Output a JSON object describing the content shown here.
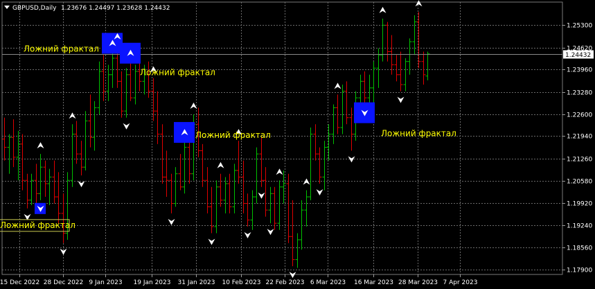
{
  "header": {
    "symbol": "GBPUSD,Daily",
    "ohlc": "1.23676 1.24497 1.23628 1.24432"
  },
  "colors": {
    "background": "#000000",
    "grid": "#6b6b6b",
    "bull": "#00c000",
    "bear": "#e00000",
    "fractal": "#ffffff",
    "highlight": "#0a14ff",
    "annotation": "#ffff00",
    "current_price_line": "#8a8a8a"
  },
  "chart_data": {
    "type": "ohlc-bars",
    "symbol": "GBPUSD",
    "timeframe": "Daily",
    "ylim": [
      1.1775,
      1.26
    ],
    "y_ticks": [
      "1.25300",
      "1.24620",
      "1.23960",
      "1.23280",
      "1.22600",
      "1.21940",
      "1.21260",
      "1.20580",
      "1.19920",
      "1.19240",
      "1.18560",
      "1.17900"
    ],
    "x_ticks": [
      "15 Dec 2022",
      "28 Dec 2022",
      "9 Jan 2023",
      "19 Jan 2023",
      "31 Jan 2023",
      "10 Feb 2023",
      "22 Feb 2023",
      "6 Mar 2023",
      "16 Mar 2023",
      "28 Mar 2023",
      "7 Apr 2023"
    ],
    "current_price": "1.24432",
    "bars": [
      {
        "o": 1.2185,
        "h": 1.225,
        "l": 1.212,
        "c": 1.216
      },
      {
        "o": 1.216,
        "h": 1.22,
        "l": 1.208,
        "c": 1.219
      },
      {
        "o": 1.219,
        "h": 1.2245,
        "l": 1.21,
        "c": 1.213
      },
      {
        "o": 1.213,
        "h": 1.221,
        "l": 1.206,
        "c": 1.217
      },
      {
        "o": 1.217,
        "h": 1.22,
        "l": 1.203,
        "c": 1.206
      },
      {
        "o": 1.206,
        "h": 1.208,
        "l": 1.1975,
        "c": 1.2
      },
      {
        "o": 1.2,
        "h": 1.208,
        "l": 1.1985,
        "c": 1.206
      },
      {
        "o": 1.206,
        "h": 1.211,
        "l": 1.199,
        "c": 1.202
      },
      {
        "o": 1.202,
        "h": 1.214,
        "l": 1.2,
        "c": 1.21
      },
      {
        "o": 1.21,
        "h": 1.212,
        "l": 1.201,
        "c": 1.205
      },
      {
        "o": 1.205,
        "h": 1.2095,
        "l": 1.1985,
        "c": 1.207
      },
      {
        "o": 1.207,
        "h": 1.212,
        "l": 1.199,
        "c": 1.201
      },
      {
        "o": 1.201,
        "h": 1.2085,
        "l": 1.193,
        "c": 1.196
      },
      {
        "o": 1.196,
        "h": 1.202,
        "l": 1.187,
        "c": 1.19
      },
      {
        "o": 1.19,
        "h": 1.2085,
        "l": 1.188,
        "c": 1.206
      },
      {
        "o": 1.206,
        "h": 1.223,
        "l": 1.204,
        "c": 1.22
      },
      {
        "o": 1.22,
        "h": 1.224,
        "l": 1.211,
        "c": 1.214
      },
      {
        "o": 1.214,
        "h": 1.218,
        "l": 1.2075,
        "c": 1.21
      },
      {
        "o": 1.21,
        "h": 1.227,
        "l": 1.209,
        "c": 1.224
      },
      {
        "o": 1.224,
        "h": 1.232,
        "l": 1.216,
        "c": 1.219
      },
      {
        "o": 1.219,
        "h": 1.23,
        "l": 1.215,
        "c": 1.228
      },
      {
        "o": 1.228,
        "h": 1.242,
        "l": 1.226,
        "c": 1.239
      },
      {
        "o": 1.239,
        "h": 1.244,
        "l": 1.23,
        "c": 1.233
      },
      {
        "o": 1.233,
        "h": 1.241,
        "l": 1.23,
        "c": 1.238
      },
      {
        "o": 1.238,
        "h": 1.245,
        "l": 1.234,
        "c": 1.243
      },
      {
        "o": 1.243,
        "h": 1.247,
        "l": 1.234,
        "c": 1.236
      },
      {
        "o": 1.236,
        "h": 1.239,
        "l": 1.225,
        "c": 1.227
      },
      {
        "o": 1.227,
        "h": 1.24,
        "l": 1.225,
        "c": 1.238
      },
      {
        "o": 1.238,
        "h": 1.242,
        "l": 1.23,
        "c": 1.231
      },
      {
        "o": 1.231,
        "h": 1.241,
        "l": 1.229,
        "c": 1.239
      },
      {
        "o": 1.239,
        "h": 1.242,
        "l": 1.233,
        "c": 1.236
      },
      {
        "o": 1.236,
        "h": 1.241,
        "l": 1.232,
        "c": 1.238
      },
      {
        "o": 1.238,
        "h": 1.242,
        "l": 1.231,
        "c": 1.233
      },
      {
        "o": 1.233,
        "h": 1.237,
        "l": 1.224,
        "c": 1.227
      },
      {
        "o": 1.227,
        "h": 1.233,
        "l": 1.217,
        "c": 1.22
      },
      {
        "o": 1.22,
        "h": 1.223,
        "l": 1.205,
        "c": 1.207
      },
      {
        "o": 1.207,
        "h": 1.215,
        "l": 1.201,
        "c": 1.206
      },
      {
        "o": 1.206,
        "h": 1.208,
        "l": 1.196,
        "c": 1.199
      },
      {
        "o": 1.199,
        "h": 1.21,
        "l": 1.198,
        "c": 1.208
      },
      {
        "o": 1.208,
        "h": 1.214,
        "l": 1.203,
        "c": 1.204
      },
      {
        "o": 1.204,
        "h": 1.218,
        "l": 1.202,
        "c": 1.216
      },
      {
        "o": 1.216,
        "h": 1.219,
        "l": 1.205,
        "c": 1.208
      },
      {
        "o": 1.208,
        "h": 1.226,
        "l": 1.206,
        "c": 1.223
      },
      {
        "o": 1.223,
        "h": 1.228,
        "l": 1.213,
        "c": 1.215
      },
      {
        "o": 1.215,
        "h": 1.217,
        "l": 1.204,
        "c": 1.206
      },
      {
        "o": 1.206,
        "h": 1.21,
        "l": 1.196,
        "c": 1.198
      },
      {
        "o": 1.198,
        "h": 1.204,
        "l": 1.19,
        "c": 1.192
      },
      {
        "o": 1.192,
        "h": 1.206,
        "l": 1.19,
        "c": 1.204
      },
      {
        "o": 1.204,
        "h": 1.208,
        "l": 1.198,
        "c": 1.2
      },
      {
        "o": 1.2,
        "h": 1.207,
        "l": 1.196,
        "c": 1.205
      },
      {
        "o": 1.205,
        "h": 1.208,
        "l": 1.196,
        "c": 1.198
      },
      {
        "o": 1.198,
        "h": 1.211,
        "l": 1.196,
        "c": 1.209
      },
      {
        "o": 1.209,
        "h": 1.218,
        "l": 1.205,
        "c": 1.207
      },
      {
        "o": 1.207,
        "h": 1.212,
        "l": 1.196,
        "c": 1.199
      },
      {
        "o": 1.199,
        "h": 1.202,
        "l": 1.192,
        "c": 1.194
      },
      {
        "o": 1.194,
        "h": 1.203,
        "l": 1.191,
        "c": 1.201
      },
      {
        "o": 1.201,
        "h": 1.216,
        "l": 1.199,
        "c": 1.214
      },
      {
        "o": 1.214,
        "h": 1.219,
        "l": 1.204,
        "c": 1.206
      },
      {
        "o": 1.206,
        "h": 1.21,
        "l": 1.195,
        "c": 1.197
      },
      {
        "o": 1.197,
        "h": 1.204,
        "l": 1.193,
        "c": 1.202
      },
      {
        "o": 1.202,
        "h": 1.204,
        "l": 1.191,
        "c": 1.193
      },
      {
        "o": 1.193,
        "h": 1.206,
        "l": 1.191,
        "c": 1.204
      },
      {
        "o": 1.204,
        "h": 1.209,
        "l": 1.199,
        "c": 1.205
      },
      {
        "o": 1.205,
        "h": 1.208,
        "l": 1.187,
        "c": 1.189
      },
      {
        "o": 1.189,
        "h": 1.2,
        "l": 1.18,
        "c": 1.182
      },
      {
        "o": 1.182,
        "h": 1.19,
        "l": 1.1795,
        "c": 1.188
      },
      {
        "o": 1.188,
        "h": 1.2,
        "l": 1.185,
        "c": 1.197
      },
      {
        "o": 1.197,
        "h": 1.203,
        "l": 1.192,
        "c": 1.201
      },
      {
        "o": 1.201,
        "h": 1.222,
        "l": 1.2,
        "c": 1.22
      },
      {
        "o": 1.22,
        "h": 1.223,
        "l": 1.212,
        "c": 1.214
      },
      {
        "o": 1.214,
        "h": 1.216,
        "l": 1.205,
        "c": 1.207
      },
      {
        "o": 1.207,
        "h": 1.218,
        "l": 1.203,
        "c": 1.216
      },
      {
        "o": 1.216,
        "h": 1.223,
        "l": 1.212,
        "c": 1.22
      },
      {
        "o": 1.22,
        "h": 1.229,
        "l": 1.217,
        "c": 1.228
      },
      {
        "o": 1.228,
        "h": 1.232,
        "l": 1.22,
        "c": 1.222
      },
      {
        "o": 1.222,
        "h": 1.235,
        "l": 1.22,
        "c": 1.233
      },
      {
        "o": 1.233,
        "h": 1.236,
        "l": 1.223,
        "c": 1.225
      },
      {
        "o": 1.225,
        "h": 1.228,
        "l": 1.215,
        "c": 1.22
      },
      {
        "o": 1.22,
        "h": 1.233,
        "l": 1.218,
        "c": 1.231
      },
      {
        "o": 1.231,
        "h": 1.238,
        "l": 1.228,
        "c": 1.236
      },
      {
        "o": 1.236,
        "h": 1.239,
        "l": 1.229,
        "c": 1.231
      },
      {
        "o": 1.231,
        "h": 1.238,
        "l": 1.229,
        "c": 1.234
      },
      {
        "o": 1.234,
        "h": 1.242,
        "l": 1.226,
        "c": 1.24
      },
      {
        "o": 1.24,
        "h": 1.246,
        "l": 1.234,
        "c": 1.244
      },
      {
        "o": 1.244,
        "h": 1.255,
        "l": 1.242,
        "c": 1.253
      },
      {
        "o": 1.253,
        "h": 1.254,
        "l": 1.242,
        "c": 1.245
      },
      {
        "o": 1.245,
        "h": 1.25,
        "l": 1.238,
        "c": 1.241
      },
      {
        "o": 1.241,
        "h": 1.244,
        "l": 1.236,
        "c": 1.238
      },
      {
        "o": 1.238,
        "h": 1.245,
        "l": 1.233,
        "c": 1.235
      },
      {
        "o": 1.235,
        "h": 1.243,
        "l": 1.233,
        "c": 1.242
      },
      {
        "o": 1.242,
        "h": 1.249,
        "l": 1.238,
        "c": 1.248
      },
      {
        "o": 1.248,
        "h": 1.256,
        "l": 1.244,
        "c": 1.254
      },
      {
        "o": 1.254,
        "h": 1.257,
        "l": 1.24,
        "c": 1.242
      },
      {
        "o": 1.242,
        "h": 1.245,
        "l": 1.235,
        "c": 1.238
      },
      {
        "o": 1.2376,
        "h": 1.245,
        "l": 1.2363,
        "c": 1.2443
      }
    ],
    "fractals": [
      {
        "i": 5,
        "dir": "down"
      },
      {
        "i": 8,
        "dir": "up"
      },
      {
        "i": 8,
        "dir": "down"
      },
      {
        "i": 13,
        "dir": "down"
      },
      {
        "i": 15,
        "dir": "up"
      },
      {
        "i": 17,
        "dir": "down"
      },
      {
        "i": 24,
        "dir": "up"
      },
      {
        "i": 25,
        "dir": "up"
      },
      {
        "i": 27,
        "dir": "down"
      },
      {
        "i": 28,
        "dir": "up"
      },
      {
        "i": 33,
        "dir": "up"
      },
      {
        "i": 37,
        "dir": "down"
      },
      {
        "i": 40,
        "dir": "up"
      },
      {
        "i": 42,
        "dir": "up"
      },
      {
        "i": 46,
        "dir": "down"
      },
      {
        "i": 48,
        "dir": "up"
      },
      {
        "i": 52,
        "dir": "up"
      },
      {
        "i": 54,
        "dir": "down"
      },
      {
        "i": 57,
        "dir": "down"
      },
      {
        "i": 59,
        "dir": "down"
      },
      {
        "i": 61,
        "dir": "up"
      },
      {
        "i": 64,
        "dir": "down"
      },
      {
        "i": 67,
        "dir": "up"
      },
      {
        "i": 70,
        "dir": "down"
      },
      {
        "i": 74,
        "dir": "up"
      },
      {
        "i": 77,
        "dir": "down"
      },
      {
        "i": 80,
        "dir": "down"
      },
      {
        "i": 84,
        "dir": "up"
      },
      {
        "i": 88,
        "dir": "down"
      },
      {
        "i": 92,
        "dir": "up"
      }
    ],
    "false_fractals": [
      {
        "i": 8,
        "dir": "down",
        "label": "Ложний фрактал"
      },
      {
        "i": 24,
        "dir": "up",
        "label": "Ложний фрактал"
      },
      {
        "i": 28,
        "dir": "up",
        "label": "Ложний фрактал"
      },
      {
        "i": 40,
        "dir": "up",
        "label": "Ложний фрактал"
      },
      {
        "i": 80,
        "dir": "down",
        "label": "Ложний  фрактал"
      }
    ]
  }
}
